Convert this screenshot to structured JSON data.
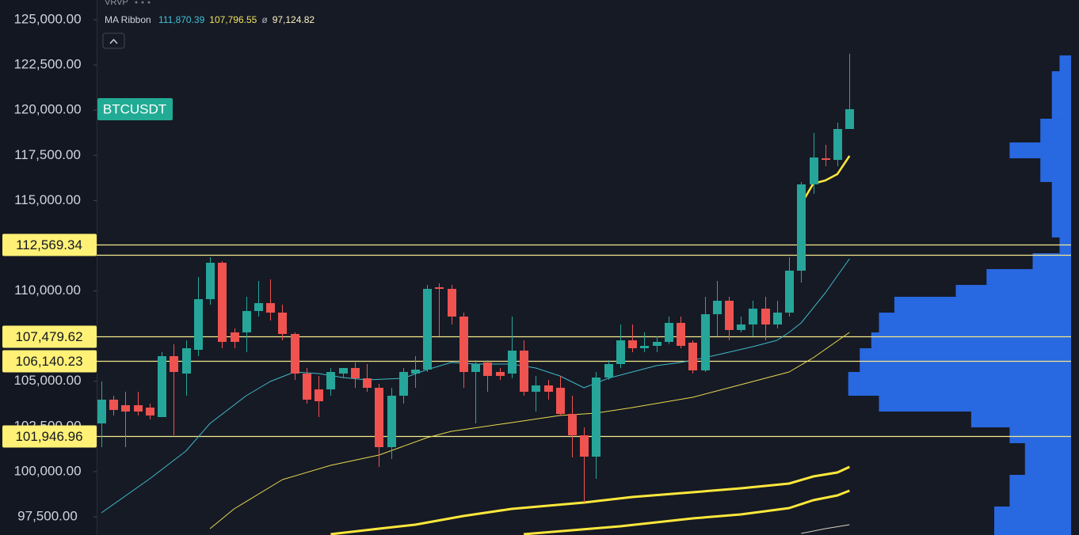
{
  "chart_data": {
    "type": "candlestick",
    "symbol": "BTCUSDT",
    "indicator_profile": "VRVP",
    "indicator_ribbon": "MA Ribbon",
    "ribbon_values": [
      {
        "value": 111870.39,
        "label": "111,870.39",
        "color": "#3fc1d6"
      },
      {
        "value": 107796.55,
        "label": "107,796.55",
        "color": "#f2e35e"
      },
      {
        "label": "ø",
        "color": "#b2b5be"
      },
      {
        "value": 97124.82,
        "label": "97,124.82",
        "color": "#fff3c4"
      }
    ],
    "ylim": [
      96493,
      126095
    ],
    "yticks": [
      {
        "value": 125000,
        "label": "125,000.00"
      },
      {
        "value": 122500,
        "label": "122,500.00"
      },
      {
        "value": 120000,
        "label": "120,000.00"
      },
      {
        "value": 117500,
        "label": "117,500.00"
      },
      {
        "value": 115000,
        "label": "115,000.00"
      },
      {
        "value": 112500,
        "label": "112,500.00"
      },
      {
        "value": 110000,
        "label": "110,000.00"
      },
      {
        "value": 107500,
        "label": "107,500.00"
      },
      {
        "value": 105000,
        "label": "105,000.00"
      },
      {
        "value": 102500,
        "label": "102,500.00"
      },
      {
        "value": 100000,
        "label": "100,000.00"
      },
      {
        "value": 97500,
        "label": "97,500.00"
      }
    ],
    "up_color": "#26a69a",
    "down_color": "#ef5350",
    "ohlc": [
      [
        102667,
        104988,
        101354,
        103981
      ],
      [
        103981,
        104200,
        103105,
        103412
      ],
      [
        103675,
        104419,
        101354,
        103324
      ],
      [
        103675,
        104419,
        103105,
        103324
      ],
      [
        103543,
        103762,
        102886,
        103105
      ],
      [
        103018,
        106608,
        103018,
        106389
      ],
      [
        106389,
        107046,
        102010,
        105514
      ],
      [
        105426,
        107265,
        104200,
        106827
      ],
      [
        106740,
        110768,
        106389,
        109542
      ],
      [
        109542,
        111863,
        109236,
        111557
      ],
      [
        111557,
        111644,
        106827,
        107178
      ],
      [
        107703,
        107922,
        106827,
        107178
      ],
      [
        107703,
        109674,
        106608,
        108886
      ],
      [
        108886,
        110550,
        108579,
        109323
      ],
      [
        109323,
        110637,
        108360,
        108798
      ],
      [
        108798,
        109236,
        107265,
        107616
      ],
      [
        107616,
        107703,
        105076,
        105426
      ],
      [
        105426,
        105733,
        103762,
        103981
      ],
      [
        104550,
        105295,
        103018,
        103893
      ],
      [
        104550,
        105733,
        104200,
        105514
      ],
      [
        105426,
        105733,
        105163,
        105733
      ],
      [
        105733,
        106039,
        104638,
        105163
      ],
      [
        105163,
        105952,
        104419,
        104638
      ],
      [
        104638,
        104857,
        100259,
        101354
      ],
      [
        101354,
        104638,
        100697,
        104200
      ],
      [
        104200,
        105733,
        103762,
        105514
      ],
      [
        105426,
        106389,
        104638,
        105645
      ],
      [
        105645,
        110331,
        105514,
        110112
      ],
      [
        110199,
        110418,
        107484,
        110112
      ],
      [
        110112,
        110331,
        108141,
        108579
      ],
      [
        108579,
        108798,
        104638,
        105514
      ],
      [
        105514,
        106171,
        102667,
        105952
      ],
      [
        106039,
        106171,
        104419,
        105295
      ],
      [
        105514,
        105733,
        105076,
        105295
      ],
      [
        105426,
        108579,
        105163,
        106696
      ],
      [
        106696,
        107265,
        104200,
        104419
      ],
      [
        104419,
        105295,
        103324,
        104770
      ],
      [
        104770,
        105076,
        103981,
        104419
      ],
      [
        104638,
        105295,
        103105,
        103193
      ],
      [
        103193,
        104200,
        100784,
        102010
      ],
      [
        102010,
        102448,
        98288,
        100828
      ],
      [
        100828,
        105514,
        99602,
        105207
      ],
      [
        105207,
        106171,
        105076,
        105952
      ],
      [
        105952,
        108141,
        105733,
        107265
      ],
      [
        107265,
        108141,
        106608,
        106827
      ],
      [
        106827,
        107703,
        106608,
        106959
      ],
      [
        106959,
        107484,
        106608,
        107178
      ],
      [
        107178,
        108579,
        107046,
        108229
      ],
      [
        108229,
        108579,
        106827,
        106959
      ],
      [
        107134,
        107265,
        105426,
        105601
      ],
      [
        105601,
        109674,
        105514,
        108710
      ],
      [
        108710,
        110550,
        107484,
        109455
      ],
      [
        109455,
        109674,
        107265,
        107835
      ],
      [
        107835,
        108579,
        107703,
        108141
      ],
      [
        108141,
        109455,
        107484,
        109017
      ],
      [
        109017,
        109674,
        107265,
        108141
      ],
      [
        108141,
        109455,
        107922,
        108798
      ],
      [
        108798,
        111863,
        108579,
        111119
      ],
      [
        111119,
        116023,
        110462,
        115892
      ],
      [
        115892,
        118738,
        115366,
        117381
      ],
      [
        117337,
        118081,
        116899,
        117249
      ],
      [
        117249,
        119308,
        116899,
        118957
      ],
      [
        118957,
        123117,
        118957,
        120052
      ]
    ],
    "series": [
      {
        "color": "#3fb8c8",
        "width": 1,
        "x": [
          0,
          4,
          7,
          9,
          12,
          14,
          16,
          18,
          20,
          22,
          25,
          27,
          29,
          31,
          34,
          36,
          38,
          40,
          42,
          44,
          46,
          48,
          50,
          52,
          54,
          56,
          57,
          58,
          60,
          62
        ],
        "values": [
          97719,
          99602,
          101135,
          102667,
          104200,
          104988,
          105514,
          105426,
          105207,
          105076,
          105163,
          105645,
          106039,
          105952,
          105952,
          105733,
          105295,
          104638,
          105163,
          105514,
          105864,
          106039,
          106302,
          106608,
          106915,
          107265,
          107703,
          108229,
          109893,
          111776
        ]
      },
      {
        "color": "#e8d84e",
        "width": 1,
        "x": [
          9,
          11,
          15,
          19,
          23,
          27,
          29,
          34,
          38,
          41,
          44,
          49,
          52,
          57,
          59,
          62
        ],
        "values": [
          96843,
          97938,
          99558,
          100346,
          100916,
          101879,
          102229,
          102711,
          103105,
          103237,
          103543,
          104112,
          104638,
          105514,
          106302,
          107703
        ]
      },
      {
        "color": "#ffe83b",
        "width": 3,
        "x": [
          19,
          23,
          26,
          30,
          34,
          40,
          44,
          49,
          53,
          57,
          59,
          61,
          62
        ],
        "values": [
          96537,
          96843,
          97062,
          97544,
          97938,
          98288,
          98595,
          98858,
          99077,
          99339,
          99733,
          99952,
          100259
        ]
      },
      {
        "color": "#ffe83b",
        "width": 3,
        "x": [
          35,
          39,
          43,
          46,
          49,
          53,
          57,
          59,
          61,
          62
        ],
        "values": [
          96537,
          96756,
          96975,
          97194,
          97413,
          97631,
          97982,
          98420,
          98682,
          98945
        ]
      },
      {
        "color": "#d8d4c0",
        "width": 1,
        "x": [
          58,
          60,
          62
        ],
        "values": [
          96581,
          96843,
          97062
        ]
      },
      {
        "color": "#ffe83b",
        "width": 2.5,
        "x": [
          58,
          59,
          60,
          61,
          62
        ],
        "values": [
          114797,
          115936,
          116111,
          116461,
          117468
        ]
      }
    ],
    "levels": [
      {
        "value": 112569.34,
        "label": "112,569.34"
      },
      {
        "value": 111994
      },
      {
        "value": 107479.62,
        "label": "107,479.62"
      },
      {
        "value": 106140.23,
        "label": "106,140.23"
      },
      {
        "value": 101946.96,
        "label": "101,946.96"
      }
    ],
    "level_color": "#f3e98c",
    "profile": {
      "color": "#2a6ff0",
      "bins": [
        123030,
        122154,
        119526,
        118213,
        117337,
        116023,
        112958,
        112082,
        111206,
        110331,
        109674,
        108798,
        107703,
        106827,
        105514,
        104200,
        103324,
        102448,
        101573,
        99821,
        98069,
        96493
      ],
      "values": [
        15,
        25,
        40,
        80,
        40,
        25,
        15,
        50,
        110,
        150,
        230,
        250,
        260,
        275,
        290,
        250,
        130,
        80,
        60,
        80,
        100
      ]
    }
  }
}
